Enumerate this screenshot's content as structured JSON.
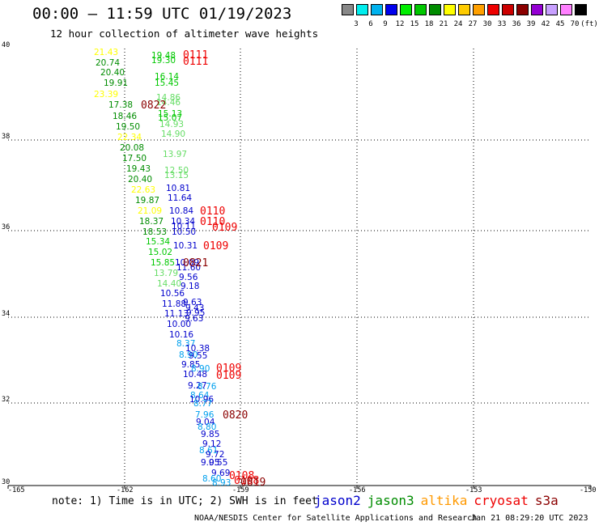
{
  "title": "00:00 – 11:59 UTC 01/19/2023",
  "subtitle": "12 hour collection of altimeter wave heights",
  "colorbar": {
    "colors": [
      "#888888",
      "#00eeee",
      "#00b2ee",
      "#0000ee",
      "#00ee00",
      "#00c800",
      "#008c00",
      "#ffff00",
      "#ffcc00",
      "#ffa000",
      "#ee0000",
      "#cc0000",
      "#8b0000",
      "#9400d3",
      "#c8a0ff",
      "#ff80ff",
      "#000000"
    ],
    "labels": [
      "3",
      "6",
      "9",
      "12",
      "15",
      "18",
      "21",
      "24",
      "27",
      "30",
      "33",
      "36",
      "39",
      "42",
      "45",
      "70",
      "(ft)"
    ]
  },
  "axes": {
    "y_ticks": [
      "40",
      "38",
      "36",
      "34",
      "32",
      "30"
    ],
    "x_ticks": [
      "-165",
      "-162",
      "-159",
      "-156",
      "-153",
      "-150"
    ]
  },
  "observations": [
    {
      "t": "21.43",
      "c": "#ffff00"
    },
    {
      "t": "20.74",
      "c": "#008c00"
    },
    {
      "t": "20.40",
      "c": "#008c00"
    },
    {
      "t": "19.91",
      "c": "#008c00"
    },
    {
      "t": "23.39",
      "c": "#ffff00"
    },
    {
      "t": "17.38",
      "c": "#008c00"
    },
    {
      "t": "18.46",
      "c": "#008c00"
    },
    {
      "t": "19.50",
      "c": "#008c00"
    },
    {
      "t": "22.34",
      "c": "#ffff00"
    },
    {
      "t": "20.08",
      "c": "#008c00"
    },
    {
      "t": "17.50",
      "c": "#008c00"
    },
    {
      "t": "19.43",
      "c": "#008c00"
    },
    {
      "t": "20.40",
      "c": "#008c00"
    },
    {
      "t": "22.63",
      "c": "#ffff00"
    },
    {
      "t": "19.87",
      "c": "#008c00"
    },
    {
      "t": "21.09",
      "c": "#ffff00"
    },
    {
      "t": "18.37",
      "c": "#008c00"
    },
    {
      "t": "18.53",
      "c": "#008c00"
    },
    {
      "t": "15.34",
      "c": "#00c800"
    },
    {
      "t": "15.02",
      "c": "#00c800"
    },
    {
      "t": "15.85",
      "c": "#00c800"
    },
    {
      "t": "13.79",
      "c": "#66dd66"
    },
    {
      "t": "14.40",
      "c": "#66dd66"
    },
    {
      "t": "10.56",
      "c": "#0000cc"
    },
    {
      "t": "11.88",
      "c": "#0000cc"
    },
    {
      "t": "11.13",
      "c": "#0000cc"
    },
    {
      "t": "10.00",
      "c": "#0000cc"
    },
    {
      "t": "10.16",
      "c": "#0000cc"
    },
    {
      "t": "19.48",
      "c": "#00c800"
    },
    {
      "t": "19.30",
      "c": "#00c800"
    },
    {
      "t": "16.14",
      "c": "#00c800"
    },
    {
      "t": "15.45",
      "c": "#00c800"
    },
    {
      "t": "14.86",
      "c": "#66dd66"
    },
    {
      "t": "14.46",
      "c": "#66dd66"
    },
    {
      "t": "15.13",
      "c": "#00c800"
    },
    {
      "t": "15.07",
      "c": "#00c800"
    },
    {
      "t": "14.93",
      "c": "#66dd66"
    },
    {
      "t": "14.90",
      "c": "#66dd66"
    },
    {
      "t": "13.97",
      "c": "#66dd66"
    },
    {
      "t": "12.50",
      "c": "#66dd66"
    },
    {
      "t": "13.15",
      "c": "#66dd66"
    },
    {
      "t": "10.81",
      "c": "#0000cc"
    },
    {
      "t": "11.64",
      "c": "#0000cc"
    },
    {
      "t": "10.84",
      "c": "#0000cc"
    },
    {
      "t": "10.34",
      "c": "#0000cc"
    },
    {
      "t": "10.11",
      "c": "#0000cc"
    },
    {
      "t": "10.50",
      "c": "#0000cc"
    },
    {
      "t": "10.31",
      "c": "#0000cc"
    },
    {
      "t": "10.09",
      "c": "#0000cc"
    },
    {
      "t": "11.60",
      "c": "#0000cc"
    },
    {
      "t": "9.56",
      "c": "#0000cc"
    },
    {
      "t": "9.18",
      "c": "#0000cc"
    },
    {
      "t": "9.63",
      "c": "#0000cc"
    },
    {
      "t": "9.43",
      "c": "#0000cc"
    },
    {
      "t": "9.95",
      "c": "#0000cc"
    },
    {
      "t": "9.63",
      "c": "#0000cc"
    },
    {
      "t": "8.37",
      "c": "#00a0ee"
    },
    {
      "t": "10.38",
      "c": "#0000cc"
    },
    {
      "t": "8.90",
      "c": "#00a0ee"
    },
    {
      "t": "9.55",
      "c": "#0000cc"
    },
    {
      "t": "9.85",
      "c": "#0000cc"
    },
    {
      "t": "8.90",
      "c": "#00a0ee"
    },
    {
      "t": "10.48",
      "c": "#0000cc"
    },
    {
      "t": "9.27",
      "c": "#0000cc"
    },
    {
      "t": "8.76",
      "c": "#00a0ee"
    },
    {
      "t": "8.64",
      "c": "#00a0ee"
    },
    {
      "t": "10.96",
      "c": "#0000cc"
    },
    {
      "t": "8.77",
      "c": "#00a0ee"
    },
    {
      "t": "7.96",
      "c": "#00a0ee"
    },
    {
      "t": "9.04",
      "c": "#0000cc"
    },
    {
      "t": "8.80",
      "c": "#00a0ee"
    },
    {
      "t": "9.85",
      "c": "#0000cc"
    },
    {
      "t": "9.12",
      "c": "#0000cc"
    },
    {
      "t": "8.61",
      "c": "#00a0ee"
    },
    {
      "t": "9.72",
      "c": "#0000cc"
    },
    {
      "t": "9.05",
      "c": "#0000cc"
    },
    {
      "t": "9.55",
      "c": "#0000cc"
    },
    {
      "t": "9.69",
      "c": "#0000cc"
    },
    {
      "t": "8.60",
      "c": "#00a0ee"
    },
    {
      "t": "8.93",
      "c": "#00a0ee"
    }
  ],
  "pass_tags": [
    {
      "t": "0111",
      "c": "#ee0000"
    },
    {
      "t": "0111",
      "c": "#ee0000"
    },
    {
      "t": "0822",
      "c": "#8b0000"
    },
    {
      "t": "0110",
      "c": "#ee0000"
    },
    {
      "t": "0110",
      "c": "#ee0000"
    },
    {
      "t": "0109",
      "c": "#ee0000"
    },
    {
      "t": "0109",
      "c": "#ee0000"
    },
    {
      "t": "0821",
      "c": "#8b0000"
    },
    {
      "t": "0109",
      "c": "#ee0000"
    },
    {
      "t": "0109",
      "c": "#ee0000"
    },
    {
      "t": "0820",
      "c": "#8b0000"
    },
    {
      "t": "0108",
      "c": "#ee0000"
    },
    {
      "t": "0108",
      "c": "#ee0000"
    },
    {
      "t": "0819",
      "c": "#8b0000"
    }
  ],
  "note": "note: 1) Time is in UTC; 2) SWH is in feet",
  "legend": [
    {
      "label": "jason2",
      "color": "#0000cc"
    },
    {
      "label": "jason3",
      "color": "#008c00"
    },
    {
      "label": "altika",
      "color": "#ff9900"
    },
    {
      "label": "cryosat",
      "color": "#ee0000"
    },
    {
      "label": "s3a",
      "color": "#8b0000"
    }
  ],
  "credit": "NOAA/NESDIS Center for Satellite Applications and Research",
  "timestamp": "Jan 21 08:29:20 UTC 2023"
}
